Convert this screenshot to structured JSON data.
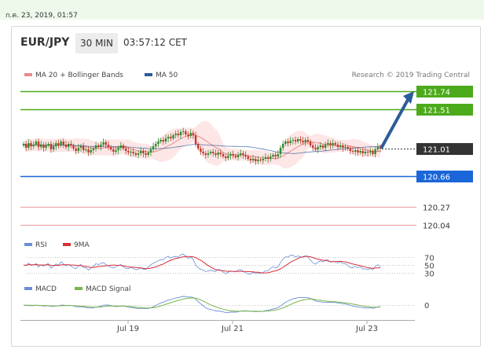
{
  "timestamp": "ก.ค. 23, 2019, 01:57",
  "header": {
    "symbol": "EUR/JPY",
    "timeframe": "30 MIN",
    "time": "03:57:12 CET"
  },
  "colors": {
    "resistance": "#4caa1b",
    "current": "#333333",
    "support_blue": "#1a66d9",
    "support_pink": "#e99b9b",
    "arrow": "#2e5b9a",
    "ma20": "#e88a8a",
    "ma50": "#2e5b9a",
    "bands": "#fde2e2",
    "candle_up": "#2f8a2f",
    "candle_down": "#c0392b",
    "rsi": "#6a8fd8",
    "rsi_ma": "#d9303a",
    "macd": "#6a8fd8",
    "macd_signal": "#7ab648"
  },
  "chart_data": [
    {
      "type": "candlestick",
      "legend": [
        {
          "label": "MA 20 + Bollinger Bands",
          "color": "#e88a8a"
        },
        {
          "label": "MA 50",
          "color": "#2e5b9a"
        }
      ],
      "credit": "Research © 2019 Trading Central",
      "x_ticks": [
        "Jul 19",
        "Jul 21",
        "Jul 23"
      ],
      "ylim": [
        119.9,
        121.95
      ],
      "levels": [
        {
          "value": 121.74,
          "label": "121.74",
          "kind": "resistance"
        },
        {
          "value": 121.51,
          "label": "121.51",
          "kind": "resistance"
        },
        {
          "value": 121.01,
          "label": "121.01",
          "kind": "current"
        },
        {
          "value": 120.66,
          "label": "120.66",
          "kind": "support"
        },
        {
          "value": 120.27,
          "label": "120.27",
          "kind": "support_weak"
        },
        {
          "value": 120.04,
          "label": "120.04",
          "kind": "support_weak"
        }
      ],
      "forecast_arrow": {
        "from": 121.01,
        "to": 121.74
      },
      "close": [
        121.07,
        121.02,
        121.08,
        121.04,
        121.06,
        121.1,
        121.03,
        121.06,
        121.02,
        121.05,
        121.07,
        121.0,
        121.04,
        121.08,
        121.05,
        121.1,
        121.06,
        121.03,
        121.07,
        121.05,
        121.01,
        120.98,
        121.02,
        121.04,
        120.99,
        121.0,
        120.96,
        120.99,
        121.01,
        121.05,
        121.03,
        121.06,
        121.09,
        121.06,
        121.03,
        121.0,
        120.97,
        120.99,
        121.02,
        121.05,
        121.01,
        120.98,
        120.96,
        120.97,
        120.95,
        120.93,
        120.95,
        120.98,
        120.95,
        120.93,
        120.96,
        121.0,
        121.04,
        121.07,
        121.1,
        121.12,
        121.1,
        121.14,
        121.16,
        121.14,
        121.18,
        121.2,
        121.18,
        121.22,
        121.23,
        121.19,
        121.17,
        121.21,
        121.18,
        121.07,
        121.01,
        120.97,
        120.95,
        120.93,
        120.95,
        120.97,
        120.95,
        120.93,
        120.96,
        120.94,
        120.91,
        120.89,
        120.92,
        120.94,
        120.92,
        120.9,
        120.93,
        120.95,
        120.93,
        120.91,
        120.88,
        120.86,
        120.88,
        120.85,
        120.87,
        120.86,
        120.88,
        120.9,
        120.88,
        120.91,
        120.93,
        120.91,
        120.94,
        121.02,
        121.07,
        121.1,
        121.08,
        121.11,
        121.12,
        121.1,
        121.13,
        121.11,
        121.09,
        121.12,
        121.1,
        121.05,
        121.02,
        121.0,
        121.03,
        121.05,
        121.02,
        121.06,
        121.08,
        121.05,
        121.08,
        121.06,
        121.03,
        121.05,
        121.02,
        121.03,
        121.01,
        120.98,
        120.97,
        120.99,
        120.96,
        120.98,
        120.95,
        120.97,
        120.96,
        120.98,
        120.94,
        121.0,
        121.03,
        121.01
      ]
    },
    {
      "type": "line",
      "legend": [
        {
          "label": "RSI",
          "color": "#6a8fd8"
        },
        {
          "label": "9MA",
          "color": "#d9303a"
        }
      ],
      "y_ticks": [
        {
          "value": 70,
          "label": "70"
        },
        {
          "value": 50,
          "label": "50"
        },
        {
          "value": 30,
          "label": "30"
        }
      ],
      "ylim": [
        20,
        80
      ]
    },
    {
      "type": "line",
      "legend": [
        {
          "label": "MACD",
          "color": "#6a8fd8"
        },
        {
          "label": "MACD Signal",
          "color": "#7ab648"
        }
      ],
      "y_ticks": [
        {
          "value": 0,
          "label": "0"
        }
      ]
    }
  ]
}
